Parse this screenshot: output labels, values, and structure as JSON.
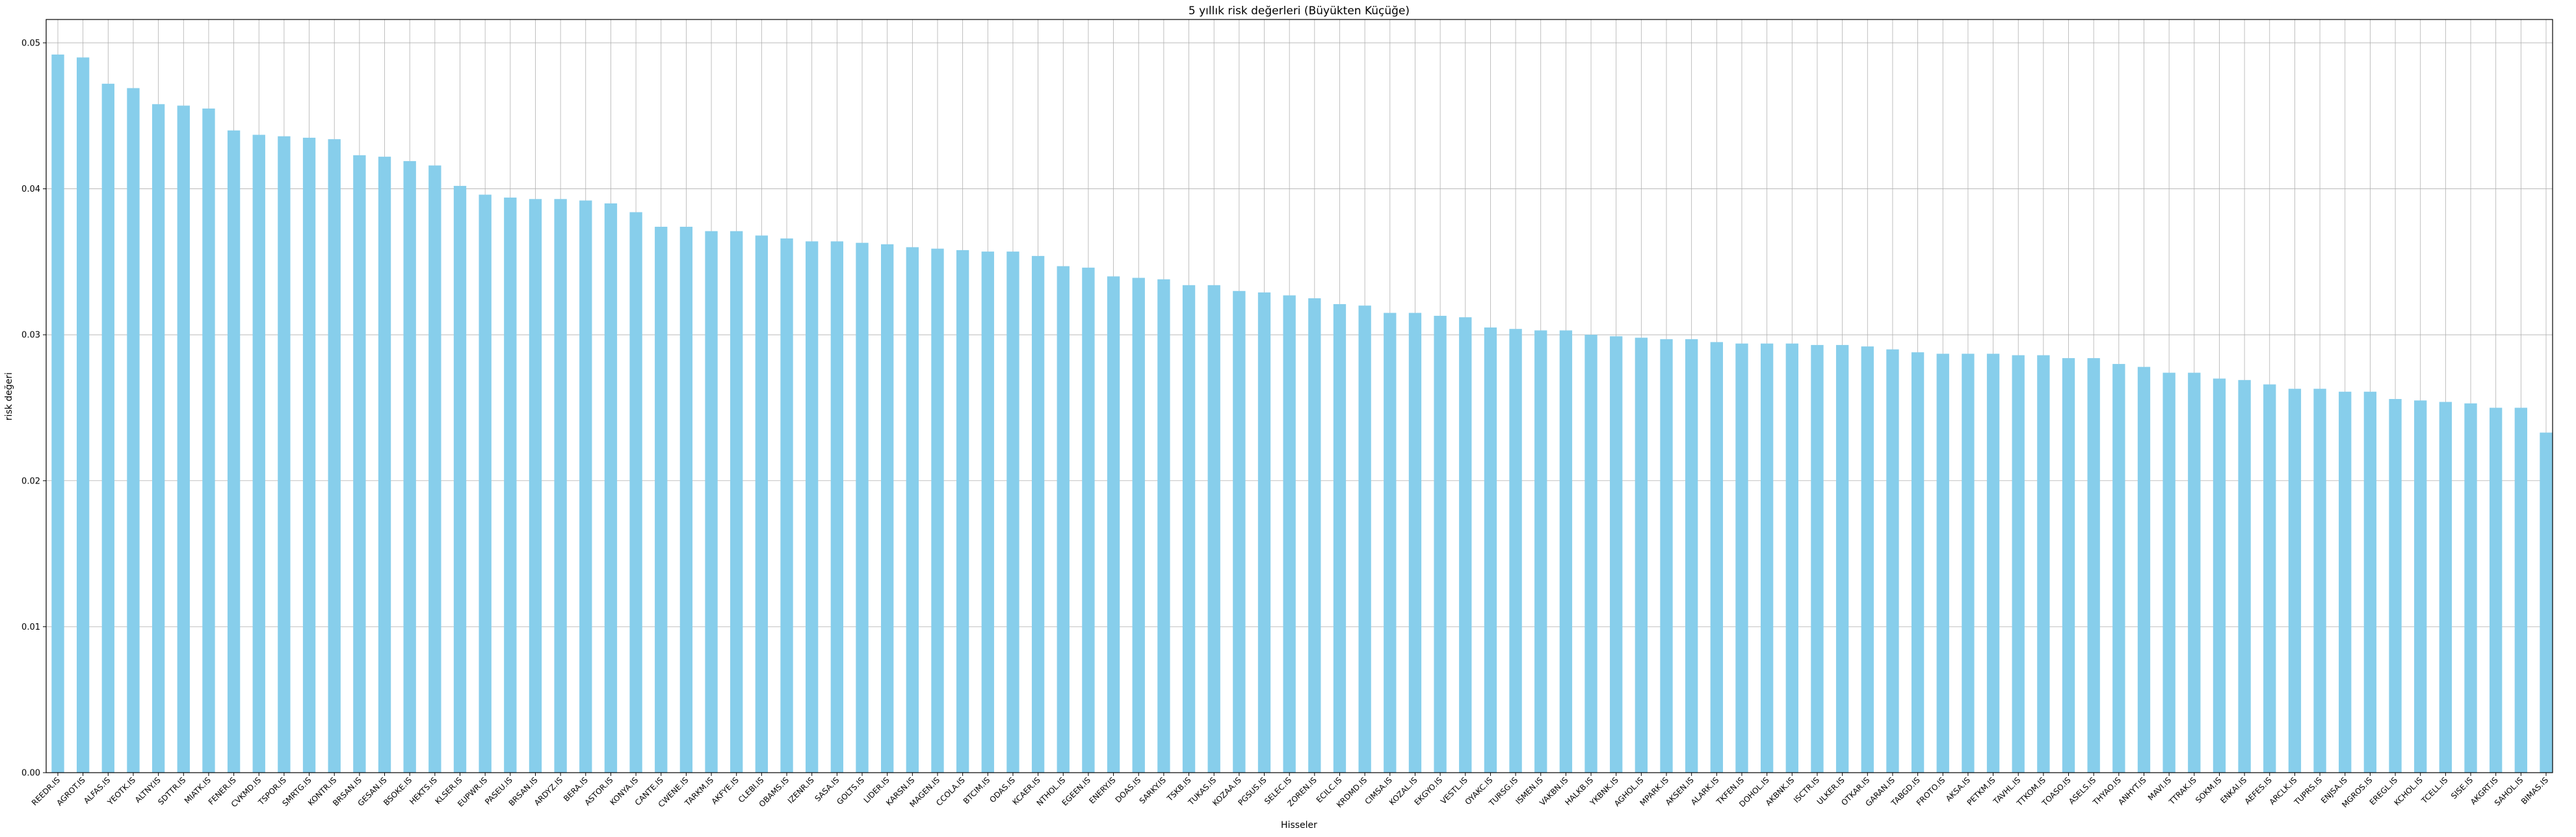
{
  "chart_data": {
    "type": "bar",
    "title": "5 yıllık risk değerleri (Büyükten Küçüğe)",
    "xlabel": "Hisseler",
    "ylabel": "risk değeri",
    "ylim": [
      0,
      0.0516
    ],
    "yticks": [
      "0.00",
      "0.01",
      "0.02",
      "0.03",
      "0.04",
      "0.05"
    ],
    "ytick_values": [
      0,
      0.01,
      0.02,
      0.03,
      0.04,
      0.05
    ],
    "grid": true,
    "legend": "none",
    "bar_color": "#87CEEB",
    "categories": [
      "REEDR.IS",
      "AGROT.IS",
      "ALFAS.IS",
      "YEOTK.IS",
      "ALTNY.IS",
      "SDTTR.IS",
      "MIATK.IS",
      "FENER.IS",
      "CVKMD.IS",
      "TSPOR.IS",
      "SMRTG.IS",
      "KONTR.IS",
      "BRSAN.IS",
      "GESAN.IS",
      "BSOKE.IS",
      "HEKTS.IS",
      "KLSER.IS",
      "EUPWR.IS",
      "PASEU.IS",
      "BRSAN.IS",
      "ARDYZ.IS",
      "BERA.IS",
      "ASTOR.IS",
      "KONYA.IS",
      "CANTE.IS",
      "CWENE.IS",
      "TARKM.IS",
      "AKFYE.IS",
      "CLEBI.IS",
      "OBAMS.IS",
      "IZENR.IS",
      "SASA.IS",
      "GOLTS.IS",
      "LIDER.IS",
      "KARSN.IS",
      "MAGEN.IS",
      "CCOLA.IS",
      "BTCIM.IS",
      "ODAS.IS",
      "KCAER.IS",
      "NTHOL.IS",
      "EGEEN.IS",
      "ENERY.IS",
      "DOAS.IS",
      "SARKY.IS",
      "TSKB.IS",
      "TUKAS.IS",
      "KOZAA.IS",
      "PGSUS.IS",
      "SELEC.IS",
      "ZOREN.IS",
      "ECILC.IS",
      "KRDMD.IS",
      "CIMSA.IS",
      "KOZAL.IS",
      "EKGYO.IS",
      "VESTL.IS",
      "OYAKC.IS",
      "TURSG.IS",
      "ISMEN.IS",
      "VAKBN.IS",
      "HALKB.IS",
      "YKBNK.IS",
      "AGHOL.IS",
      "MPARK.IS",
      "AKSEN.IS",
      "ALARK.IS",
      "TKFEN.IS",
      "DOHOL.IS",
      "AKBNK.IS",
      "ISCTR.IS",
      "ULKER.IS",
      "OTKAR.IS",
      "GARAN.IS",
      "TABGD.IS",
      "FROTO.IS",
      "AKSA.IS",
      "PETKM.IS",
      "TAVHL.IS",
      "TTKOM.IS",
      "TOASO.IS",
      "ASELS.IS",
      "THYAO.IS",
      "ANHYT.IS",
      "MAVI.IS",
      "TTRAK.IS",
      "SOKM.IS",
      "ENKAI.IS",
      "AEFES.IS",
      "ARCLK.IS",
      "TUPRS.IS",
      "ENJSA.IS",
      "MGROS.IS",
      "EREGL.IS",
      "KCHOL.IS",
      "TCELL.IS",
      "SISE.IS",
      "AKGRT.IS",
      "SAHOL.IS",
      "BIMAS.IS"
    ],
    "values": [
      0.0492,
      0.049,
      0.0472,
      0.0469,
      0.0458,
      0.0457,
      0.0455,
      0.044,
      0.0437,
      0.0436,
      0.0435,
      0.0434,
      0.0423,
      0.0422,
      0.0419,
      0.0416,
      0.0402,
      0.0396,
      0.0394,
      0.0393,
      0.0393,
      0.0392,
      0.039,
      0.0384,
      0.0374,
      0.0374,
      0.0371,
      0.0371,
      0.0368,
      0.0366,
      0.0364,
      0.0364,
      0.0363,
      0.0362,
      0.036,
      0.0359,
      0.0358,
      0.0357,
      0.0357,
      0.0354,
      0.0347,
      0.0346,
      0.034,
      0.0339,
      0.0338,
      0.0334,
      0.0334,
      0.033,
      0.0329,
      0.0327,
      0.0325,
      0.0321,
      0.032,
      0.0315,
      0.0315,
      0.0313,
      0.0312,
      0.0305,
      0.0304,
      0.0303,
      0.0303,
      0.03,
      0.0299,
      0.0298,
      0.0297,
      0.0297,
      0.0295,
      0.0294,
      0.0294,
      0.0294,
      0.0293,
      0.0293,
      0.0292,
      0.029,
      0.0288,
      0.0287,
      0.0287,
      0.0287,
      0.0286,
      0.0286,
      0.0284,
      0.0284,
      0.028,
      0.0278,
      0.0274,
      0.0274,
      0.027,
      0.0269,
      0.0266,
      0.0263,
      0.0263,
      0.0261,
      0.0261,
      0.0256,
      0.0255,
      0.0254,
      0.0253,
      0.025,
      0.025,
      0.0233
    ]
  }
}
